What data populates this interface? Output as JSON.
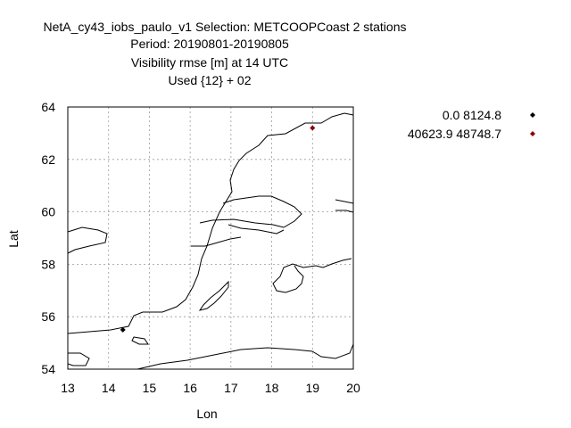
{
  "title": {
    "line1": "NetA_cy43_iobs_paulo_v1   Selection: METCOOPCoast      2 stations",
    "line2": "Period: 20190801-20190805",
    "line3": "Visibility rmse [m] at  14 UTC",
    "line4": "Used {12} + 02"
  },
  "chart_data": {
    "type": "scatter",
    "xlabel": "Lon",
    "ylabel": "Lat",
    "xlim": [
      13,
      20
    ],
    "ylim": [
      54,
      64
    ],
    "xticks": [
      "13",
      "14",
      "15",
      "16",
      "17",
      "18",
      "19",
      "20"
    ],
    "yticks": [
      "54",
      "56",
      "58",
      "60",
      "62",
      "64"
    ],
    "grid": true,
    "legend_position": "top-right-outside",
    "series": [
      {
        "name": "0.0 8124.8",
        "color": "#000000",
        "points": [
          {
            "lon": 14.35,
            "lat": 55.5
          }
        ]
      },
      {
        "name": "40623.9 48748.7",
        "color": "#8b0000",
        "points": [
          {
            "lon": 19.0,
            "lat": 63.2
          }
        ]
      }
    ]
  }
}
